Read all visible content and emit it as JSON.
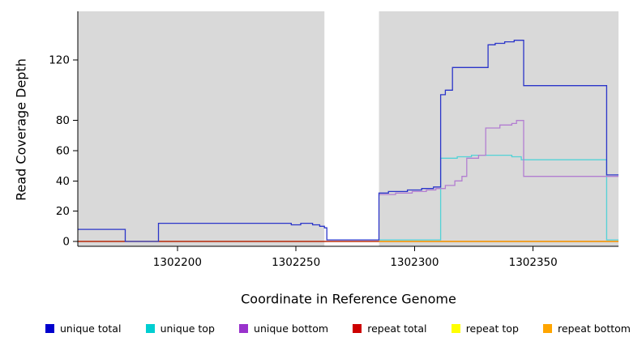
{
  "chart_data": {
    "type": "line",
    "title": "",
    "xlabel": "Coordinate in Reference Genome",
    "ylabel": "Read Coverage Depth",
    "xlim": [
      1302158,
      1302386
    ],
    "ylim": [
      0,
      150
    ],
    "x_ticks": [
      1302200,
      1302250,
      1302300,
      1302350
    ],
    "y_ticks": [
      0,
      20,
      40,
      60,
      80,
      120
    ],
    "grid": false,
    "legend_position": "bottom",
    "shaded_regions": [
      {
        "x0": 1302158,
        "x1": 1302262,
        "color": "#d9d9d9"
      },
      {
        "x0": 1302285,
        "x1": 1302386,
        "color": "#d9d9d9"
      }
    ],
    "series": [
      {
        "name": "repeat top",
        "color": "#ffff00",
        "points": [
          [
            1302158,
            0
          ],
          [
            1302386,
            0
          ]
        ]
      },
      {
        "name": "repeat total",
        "color": "#aa0000",
        "points": [
          [
            1302158,
            0
          ],
          [
            1302386,
            0
          ]
        ]
      },
      {
        "name": "repeat bottom",
        "color": "#ff9d00",
        "points": [
          [
            1302285,
            0
          ],
          [
            1302386,
            0
          ]
        ]
      },
      {
        "name": "unique top",
        "color": "#53d2d6",
        "points": [
          [
            1302285,
            1
          ],
          [
            1302311,
            55
          ],
          [
            1302318,
            56
          ],
          [
            1302324,
            57
          ],
          [
            1302341,
            56
          ],
          [
            1302345,
            54
          ],
          [
            1302381,
            1
          ],
          [
            1302386,
            1
          ]
        ]
      },
      {
        "name": "unique bottom",
        "color": "#b37ed1",
        "points": [
          [
            1302285,
            31
          ],
          [
            1302292,
            32
          ],
          [
            1302299,
            33
          ],
          [
            1302305,
            34
          ],
          [
            1302309,
            35
          ],
          [
            1302313,
            37
          ],
          [
            1302317,
            40
          ],
          [
            1302320,
            43
          ],
          [
            1302322,
            55
          ],
          [
            1302327,
            57
          ],
          [
            1302330,
            75
          ],
          [
            1302336,
            77
          ],
          [
            1302341,
            78
          ],
          [
            1302343,
            80
          ],
          [
            1302346,
            43
          ],
          [
            1302386,
            43
          ]
        ]
      },
      {
        "name": "unique total",
        "color": "#2b35c9",
        "points": [
          [
            1302158,
            8
          ],
          [
            1302178,
            0
          ],
          [
            1302192,
            12
          ],
          [
            1302245,
            12
          ],
          [
            1302248,
            11
          ],
          [
            1302252,
            12
          ],
          [
            1302257,
            11
          ],
          [
            1302260,
            10
          ],
          [
            1302262,
            9
          ],
          [
            1302263,
            1
          ],
          [
            1302285,
            32
          ],
          [
            1302289,
            33
          ],
          [
            1302297,
            34
          ],
          [
            1302303,
            35
          ],
          [
            1302308,
            36
          ],
          [
            1302311,
            97
          ],
          [
            1302313,
            100
          ],
          [
            1302316,
            115
          ],
          [
            1302331,
            130
          ],
          [
            1302334,
            131
          ],
          [
            1302338,
            132
          ],
          [
            1302342,
            133
          ],
          [
            1302346,
            103
          ],
          [
            1302381,
            44
          ],
          [
            1302386,
            44
          ]
        ]
      }
    ],
    "legend": [
      {
        "label": "unique total",
        "color": "#0000cd"
      },
      {
        "label": "unique top",
        "color": "#00ced1"
      },
      {
        "label": "unique bottom",
        "color": "#9932cc"
      },
      {
        "label": "repeat total",
        "color": "#cd0000"
      },
      {
        "label": "repeat top",
        "color": "#ffff00"
      },
      {
        "label": "repeat bottom",
        "color": "#ffa500"
      }
    ]
  }
}
